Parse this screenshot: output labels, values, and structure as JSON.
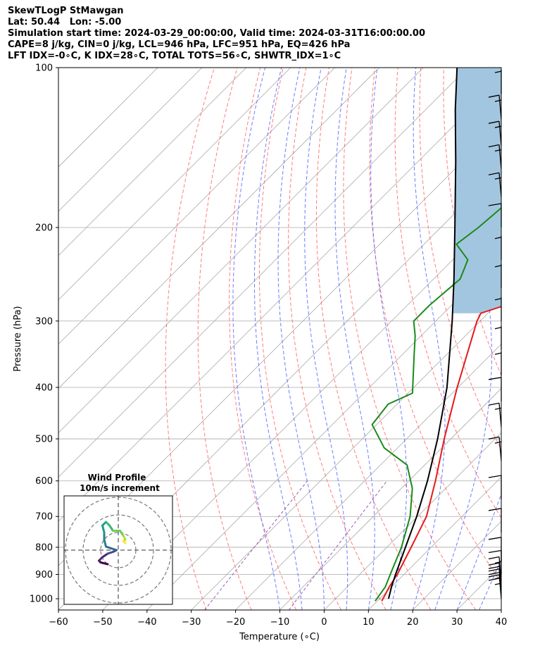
{
  "header": {
    "lines": [
      "SkewTLogP StMawgan",
      "Lat: 50.44   Lon: -5.00",
      "Simulation start time: 2024-03-29_00:00:00, Valid time: 2024-03-31T16:00:00.00",
      "CAPE=8 j/kg, CIN=0 j/kg, LCL=946 hPa, LFC=951 hPa, EQ=426 hPa",
      "LFT IDX=-0∘C, K IDX=28∘C, TOTAL TOTS=56∘C, SHWTR_IDX=1∘C"
    ]
  },
  "chart_data": {
    "type": "line",
    "subtype": "skew-t log-p",
    "xlabel": "Temperature (∘C)",
    "ylabel": "Pressure (hPa)",
    "xlim": [
      -60,
      40
    ],
    "ylim": [
      1050,
      100
    ],
    "y_scale": "log",
    "x_ticks": [
      "−60",
      "−50",
      "−40",
      "−30",
      "−20",
      "−10",
      "0",
      "10",
      "20",
      "30",
      "40"
    ],
    "y_ticks": [
      "100",
      "200",
      "300",
      "400",
      "500",
      "600",
      "700",
      "800",
      "900",
      "1000"
    ],
    "grid": true,
    "colors": {
      "temperature": "#e41a1c",
      "dewpoint": "#1a8a1a",
      "parcel": "#000000",
      "cape_fill": "#a3c6e0",
      "isotherm": "#aaaaaa",
      "dry_adiabat": "#ff6666",
      "moist_adiabat": "#5566ff",
      "mixing_ratio": "#9b59b6"
    },
    "series": [
      {
        "key": "temperature",
        "points": [
          [
            1010,
            11.0
          ],
          [
            950,
            9.5
          ],
          [
            900,
            8.5
          ],
          [
            800,
            5.5
          ],
          [
            700,
            2.0
          ],
          [
            600,
            -4.0
          ],
          [
            500,
            -11.5
          ],
          [
            400,
            -20.2
          ],
          [
            300,
            -30.7
          ],
          [
            290,
            -31.6
          ],
          [
            270,
            -23.9
          ],
          [
            250,
            -24.2
          ],
          [
            230,
            -21.0
          ],
          [
            200,
            -20.5
          ],
          [
            180,
            -19.1
          ],
          [
            160,
            -17.5
          ],
          [
            140,
            -15.5
          ],
          [
            120,
            -14.2
          ],
          [
            110,
            -12.5
          ],
          [
            100,
            -10.5
          ]
        ]
      },
      {
        "key": "dewpoint",
        "points": [
          [
            1010,
            9.5
          ],
          [
            950,
            8.6
          ],
          [
            900,
            6.9
          ],
          [
            800,
            3.3
          ],
          [
            700,
            -1.7
          ],
          [
            620,
            -7.5
          ],
          [
            560,
            -14.0
          ],
          [
            520,
            -23.0
          ],
          [
            470,
            -31.0
          ],
          [
            430,
            -32.0
          ],
          [
            410,
            -29.0
          ],
          [
            350,
            -36.9
          ],
          [
            320,
            -41.3
          ],
          [
            300,
            -45.0
          ],
          [
            280,
            -45.0
          ],
          [
            250,
            -44.0
          ],
          [
            230,
            -46.6
          ],
          [
            215,
            -52.7
          ],
          [
            200,
            -51.5
          ],
          [
            160,
            -49.5
          ],
          [
            130,
            -46.0
          ],
          [
            110,
            -41.0
          ],
          [
            100,
            -38.0
          ]
        ]
      },
      {
        "key": "parcel",
        "points": [
          [
            1000,
            12.0
          ],
          [
            950,
            10.0
          ],
          [
            900,
            8.1
          ],
          [
            800,
            4.2
          ],
          [
            700,
            -0.2
          ],
          [
            600,
            -5.8
          ],
          [
            500,
            -13.0
          ],
          [
            400,
            -22.5
          ],
          [
            300,
            -36.3
          ],
          [
            250,
            -45.4
          ],
          [
            200,
            -56.8
          ],
          [
            150,
            -71.6
          ],
          [
            120,
            -83.3
          ],
          [
            100,
            -92.4
          ]
        ]
      }
    ],
    "wind_barbs": [
      {
        "p": 1000,
        "speed_kt": 25,
        "dir_deg": 260
      },
      {
        "p": 975,
        "speed_kt": 25,
        "dir_deg": 262
      },
      {
        "p": 950,
        "speed_kt": 20,
        "dir_deg": 265
      },
      {
        "p": 925,
        "speed_kt": 15,
        "dir_deg": 270
      },
      {
        "p": 900,
        "speed_kt": 10,
        "dir_deg": 280
      },
      {
        "p": 850,
        "speed_kt": 10,
        "dir_deg": 320
      },
      {
        "p": 750,
        "speed_kt": 10,
        "dir_deg": 335
      },
      {
        "p": 650,
        "speed_kt": 10,
        "dir_deg": 330
      },
      {
        "p": 550,
        "speed_kt": 15,
        "dir_deg": 325
      },
      {
        "p": 475,
        "speed_kt": 15,
        "dir_deg": 320
      },
      {
        "p": 425,
        "speed_kt": 10,
        "dir_deg": 330
      },
      {
        "p": 380,
        "speed_kt": 5,
        "dir_deg": 250
      },
      {
        "p": 340,
        "speed_kt": 5,
        "dir_deg": 250
      },
      {
        "p": 300,
        "speed_kt": 5,
        "dir_deg": 260
      },
      {
        "p": 260,
        "speed_kt": 5,
        "dir_deg": 270
      },
      {
        "p": 230,
        "speed_kt": 5,
        "dir_deg": 265
      },
      {
        "p": 200,
        "speed_kt": 10,
        "dir_deg": 260
      },
      {
        "p": 175,
        "speed_kt": 15,
        "dir_deg": 255
      },
      {
        "p": 155,
        "speed_kt": 15,
        "dir_deg": 250
      },
      {
        "p": 140,
        "speed_kt": 15,
        "dir_deg": 235
      },
      {
        "p": 125,
        "speed_kt": 15,
        "dir_deg": 225
      },
      {
        "p": 112,
        "speed_kt": 5,
        "dir_deg": 240
      }
    ],
    "hodograph": {
      "title": "Wind Profile",
      "subtitle": "10m/s increment",
      "ring_step_ms": 10,
      "colormap": "viridis",
      "points_ms": [
        [
          -6,
          -8
        ],
        [
          -10,
          -7
        ],
        [
          -11,
          -6
        ],
        [
          -9,
          -4
        ],
        [
          -6,
          -2
        ],
        [
          -3,
          -1
        ],
        [
          -1,
          0
        ],
        [
          -4,
          1
        ],
        [
          -7,
          2
        ],
        [
          -8,
          6
        ],
        [
          -8,
          10
        ],
        [
          -9,
          14
        ],
        [
          -7,
          16
        ],
        [
          -5,
          14
        ],
        [
          -3,
          11
        ],
        [
          1,
          11
        ],
        [
          3,
          8
        ],
        [
          4,
          6
        ],
        [
          3,
          5
        ],
        [
          4,
          4
        ]
      ]
    }
  }
}
